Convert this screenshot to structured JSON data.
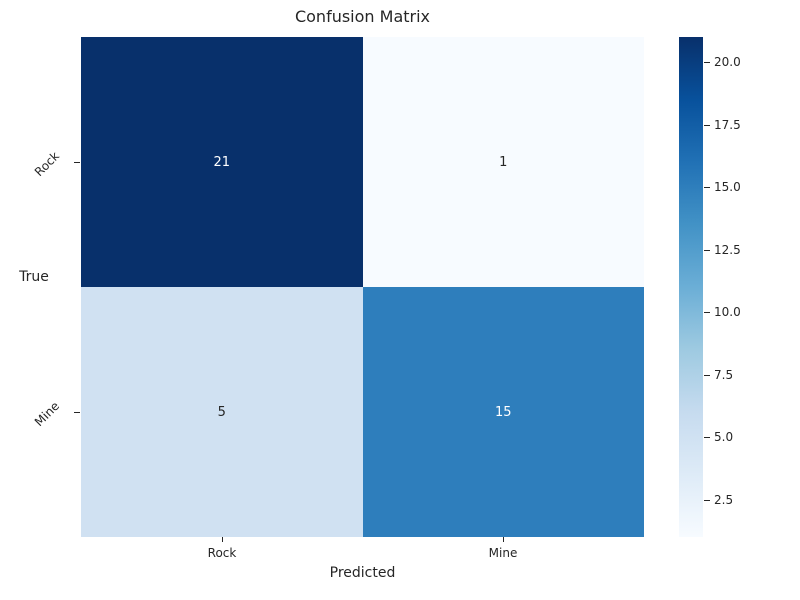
{
  "figure": {
    "background": "#ffffff",
    "text_color": "#262626"
  },
  "chart_data": {
    "type": "heatmap",
    "title": "Confusion Matrix",
    "xlabel": "Predicted",
    "ylabel": "True",
    "x_tick_labels": [
      "Rock",
      "Mine"
    ],
    "y_tick_labels": [
      "Rock",
      "Mine"
    ],
    "matrix": [
      [
        21,
        1
      ],
      [
        5,
        15
      ]
    ],
    "cells": [
      {
        "true": "Rock",
        "predicted": "Rock",
        "value": 21,
        "bg": "#08306b",
        "fg": "#ffffff"
      },
      {
        "true": "Rock",
        "predicted": "Mine",
        "value": 1,
        "bg": "#f7fbff",
        "fg": "#262626"
      },
      {
        "true": "Mine",
        "predicted": "Rock",
        "value": 5,
        "bg": "#d0e1f2",
        "fg": "#262626"
      },
      {
        "true": "Mine",
        "predicted": "Mine",
        "value": 15,
        "bg": "#2e7ebc",
        "fg": "#ffffff"
      }
    ],
    "colormap": "Blues",
    "grid": false,
    "legend_position": "right-colorbar",
    "colorbar": {
      "vmin": 1,
      "vmax": 21,
      "ticks": [
        {
          "value": 2.5,
          "label": "2.5"
        },
        {
          "value": 5.0,
          "label": "5.0"
        },
        {
          "value": 7.5,
          "label": "7.5"
        },
        {
          "value": 10.0,
          "label": "10.0"
        },
        {
          "value": 12.5,
          "label": "12.5"
        },
        {
          "value": 15.0,
          "label": "15.0"
        },
        {
          "value": 17.5,
          "label": "17.5"
        },
        {
          "value": 20.0,
          "label": "20.0"
        }
      ],
      "gradient_top_to_bottom": [
        "#08306b",
        "#08519c",
        "#2171b5",
        "#4292c6",
        "#6baed6",
        "#9ecae1",
        "#c6dbef",
        "#deebf7",
        "#f7fbff"
      ]
    }
  }
}
